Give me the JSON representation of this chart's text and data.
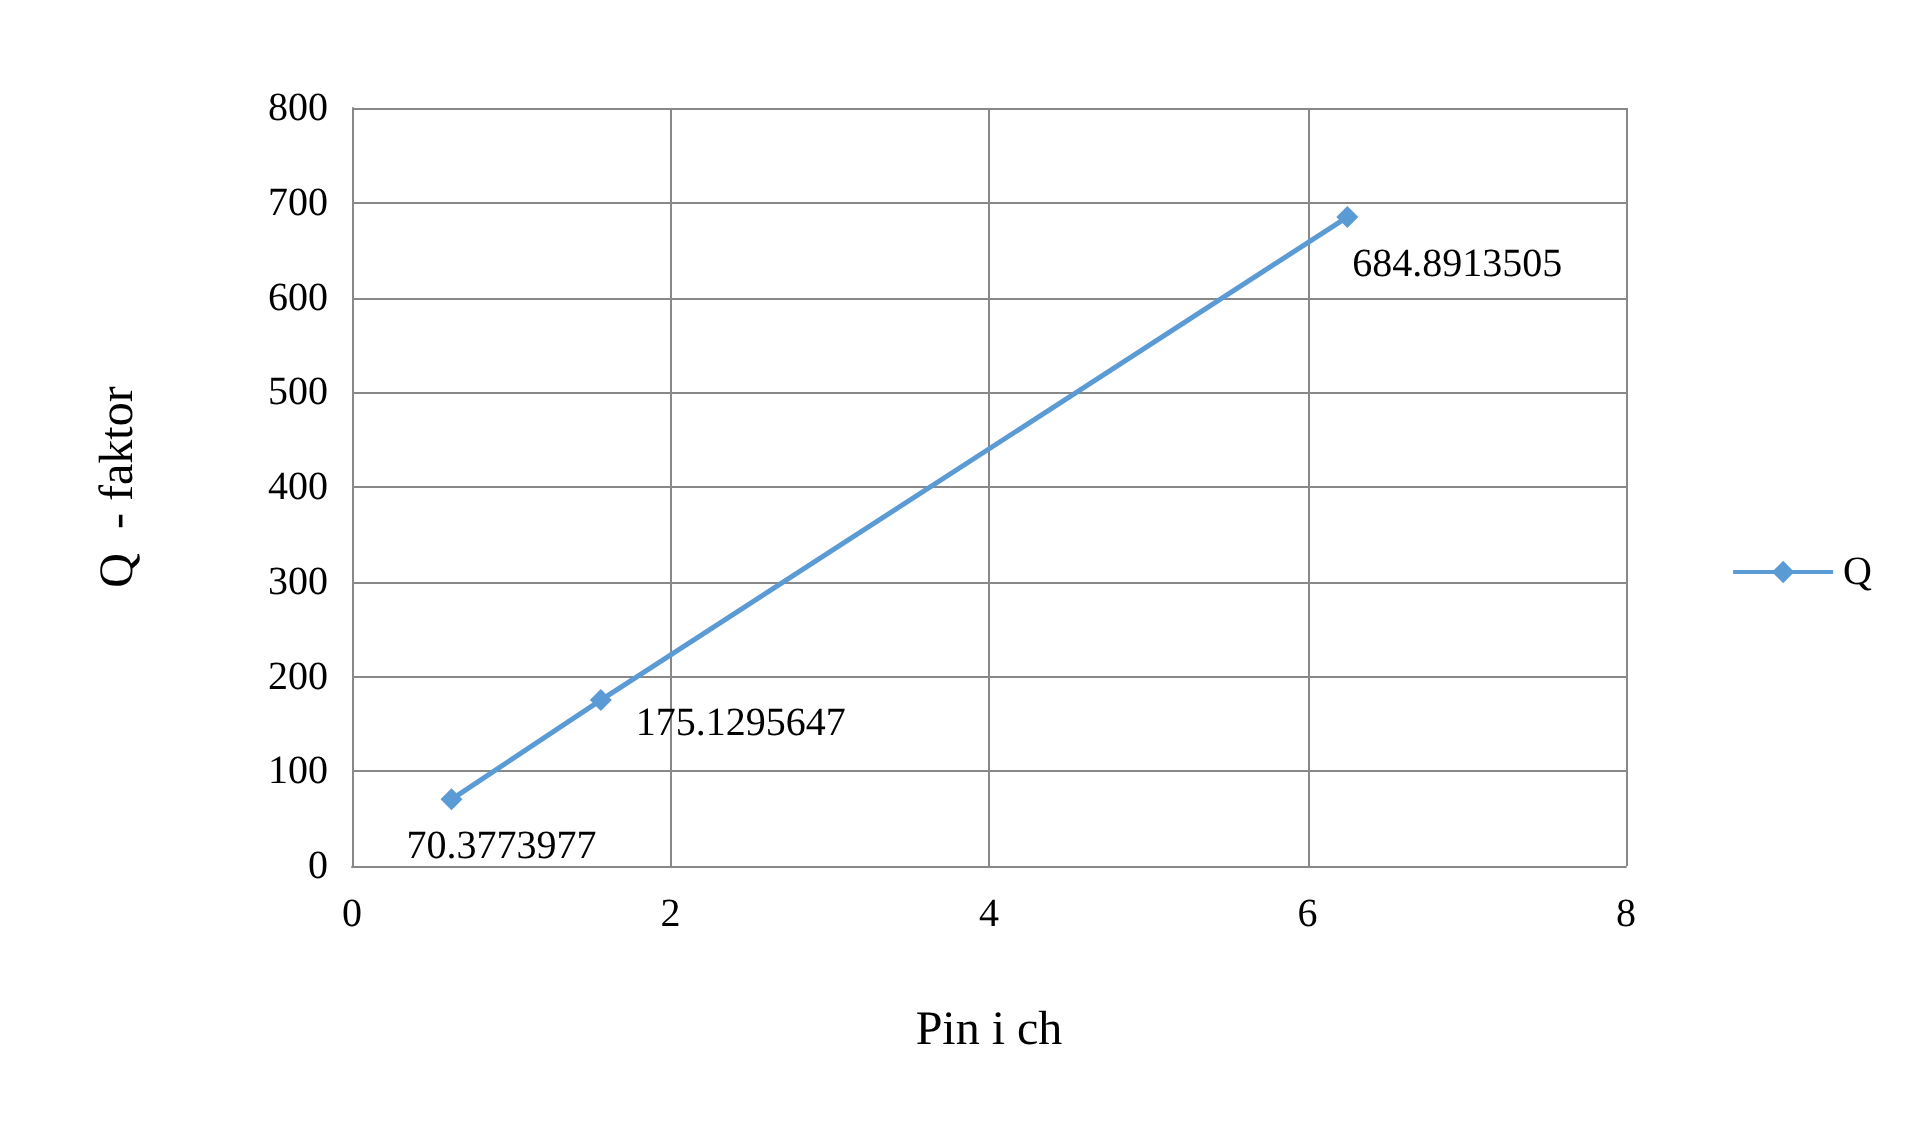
{
  "chart_data": {
    "type": "line",
    "xlabel": "Pin i ch",
    "ylabel": "Q  - faktor",
    "x": [
      0.625,
      1.5625,
      6.25
    ],
    "series": [
      {
        "name": "Q",
        "color": "#5b9bd5",
        "values": [
          70.3773977,
          175.1295647,
          684.8913505
        ]
      }
    ],
    "xlim": [
      0,
      8
    ],
    "xticks": [
      0,
      2,
      4,
      6,
      8
    ],
    "ylim": [
      0,
      800
    ],
    "yticks": [
      0,
      100,
      200,
      300,
      400,
      500,
      600,
      700,
      800
    ],
    "grid": true,
    "legend": "right",
    "marker": "diamond",
    "line_style": "solid",
    "data_labels": true
  }
}
